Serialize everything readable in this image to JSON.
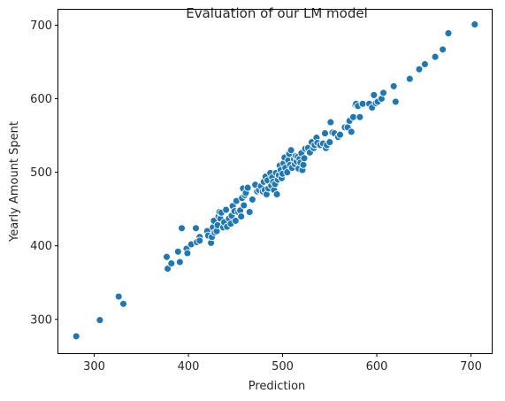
{
  "chart_data": {
    "type": "scatter",
    "title": "Evaluation of our LM model",
    "xlabel": "Prediction",
    "ylabel": "Yearly Amount Spent",
    "xlim": [
      262,
      722
    ],
    "ylim": [
      254,
      721
    ],
    "xticks": [
      300,
      400,
      500,
      600,
      700
    ],
    "yticks": [
      300,
      400,
      500,
      600,
      700
    ],
    "grid": false,
    "marker_color": "#1f77b4",
    "series": [
      {
        "name": "Yearly Amount Spent vs Prediction",
        "points": [
          [
            281,
            277
          ],
          [
            306,
            299
          ],
          [
            326,
            331
          ],
          [
            331,
            321
          ],
          [
            377,
            385
          ],
          [
            378,
            369
          ],
          [
            382,
            376
          ],
          [
            389,
            392
          ],
          [
            391,
            378
          ],
          [
            393,
            424
          ],
          [
            398,
            396
          ],
          [
            399,
            390
          ],
          [
            403,
            402
          ],
          [
            408,
            424
          ],
          [
            409,
            405
          ],
          [
            412,
            412
          ],
          [
            412,
            407
          ],
          [
            420,
            420
          ],
          [
            421,
            414
          ],
          [
            424,
            404
          ],
          [
            425,
            412
          ],
          [
            426,
            425
          ],
          [
            427,
            434
          ],
          [
            428,
            418
          ],
          [
            430,
            420
          ],
          [
            431,
            428
          ],
          [
            432,
            440
          ],
          [
            433,
            446
          ],
          [
            434,
            437
          ],
          [
            435,
            445
          ],
          [
            437,
            425
          ],
          [
            438,
            432
          ],
          [
            440,
            449
          ],
          [
            441,
            426
          ],
          [
            443,
            437
          ],
          [
            445,
            430
          ],
          [
            446,
            441
          ],
          [
            447,
            454
          ],
          [
            449,
            447
          ],
          [
            450,
            434
          ],
          [
            451,
            461
          ],
          [
            453,
            446
          ],
          [
            455,
            448
          ],
          [
            456,
            440
          ],
          [
            457,
            465
          ],
          [
            458,
            478
          ],
          [
            459,
            455
          ],
          [
            460,
            469
          ],
          [
            461,
            472
          ],
          [
            463,
            479
          ],
          [
            465,
            446
          ],
          [
            468,
            463
          ],
          [
            471,
            483
          ],
          [
            473,
            474
          ],
          [
            475,
            476
          ],
          [
            477,
            481
          ],
          [
            479,
            474
          ],
          [
            480,
            487
          ],
          [
            481,
            476
          ],
          [
            482,
            494
          ],
          [
            483,
            470
          ],
          [
            484,
            489
          ],
          [
            485,
            478
          ],
          [
            487,
            499
          ],
          [
            488,
            482
          ],
          [
            489,
            493
          ],
          [
            490,
            487
          ],
          [
            491,
            476
          ],
          [
            492,
            484
          ],
          [
            493,
            499
          ],
          [
            494,
            470
          ],
          [
            495,
            490
          ],
          [
            496,
            496
          ],
          [
            497,
            509
          ],
          [
            498,
            503
          ],
          [
            499,
            492
          ],
          [
            500,
            498
          ],
          [
            501,
            512
          ],
          [
            502,
            520
          ],
          [
            503,
            506
          ],
          [
            505,
            500
          ],
          [
            506,
            516
          ],
          [
            507,
            525
          ],
          [
            508,
            510
          ],
          [
            509,
            530
          ],
          [
            510,
            506
          ],
          [
            512,
            518
          ],
          [
            513,
            511
          ],
          [
            514,
            522
          ],
          [
            515,
            515
          ],
          [
            516,
            521
          ],
          [
            517,
            505
          ],
          [
            518,
            518
          ],
          [
            519,
            513
          ],
          [
            520,
            526
          ],
          [
            521,
            503
          ],
          [
            522,
            510
          ],
          [
            523,
            519
          ],
          [
            524,
            532
          ],
          [
            527,
            533
          ],
          [
            529,
            527
          ],
          [
            531,
            541
          ],
          [
            533,
            533
          ],
          [
            534,
            537
          ],
          [
            536,
            547
          ],
          [
            537,
            540
          ],
          [
            540,
            537
          ],
          [
            543,
            539
          ],
          [
            545,
            553
          ],
          [
            546,
            533
          ],
          [
            547,
            537
          ],
          [
            550,
            541
          ],
          [
            551,
            568
          ],
          [
            553,
            554
          ],
          [
            555,
            553
          ],
          [
            559,
            548
          ],
          [
            561,
            551
          ],
          [
            566,
            561
          ],
          [
            569,
            561
          ],
          [
            571,
            570
          ],
          [
            573,
            555
          ],
          [
            575,
            575
          ],
          [
            577,
            592
          ],
          [
            578,
            593
          ],
          [
            580,
            590
          ],
          [
            582,
            575
          ],
          [
            585,
            593
          ],
          [
            592,
            593
          ],
          [
            595,
            588
          ],
          [
            597,
            605
          ],
          [
            599,
            594
          ],
          [
            601,
            596
          ],
          [
            605,
            600
          ],
          [
            607,
            608
          ],
          [
            618,
            617
          ],
          [
            620,
            596
          ],
          [
            635,
            627
          ],
          [
            645,
            640
          ],
          [
            651,
            647
          ],
          [
            662,
            657
          ],
          [
            670,
            667
          ],
          [
            676,
            689
          ],
          [
            704,
            701
          ]
        ]
      }
    ]
  }
}
